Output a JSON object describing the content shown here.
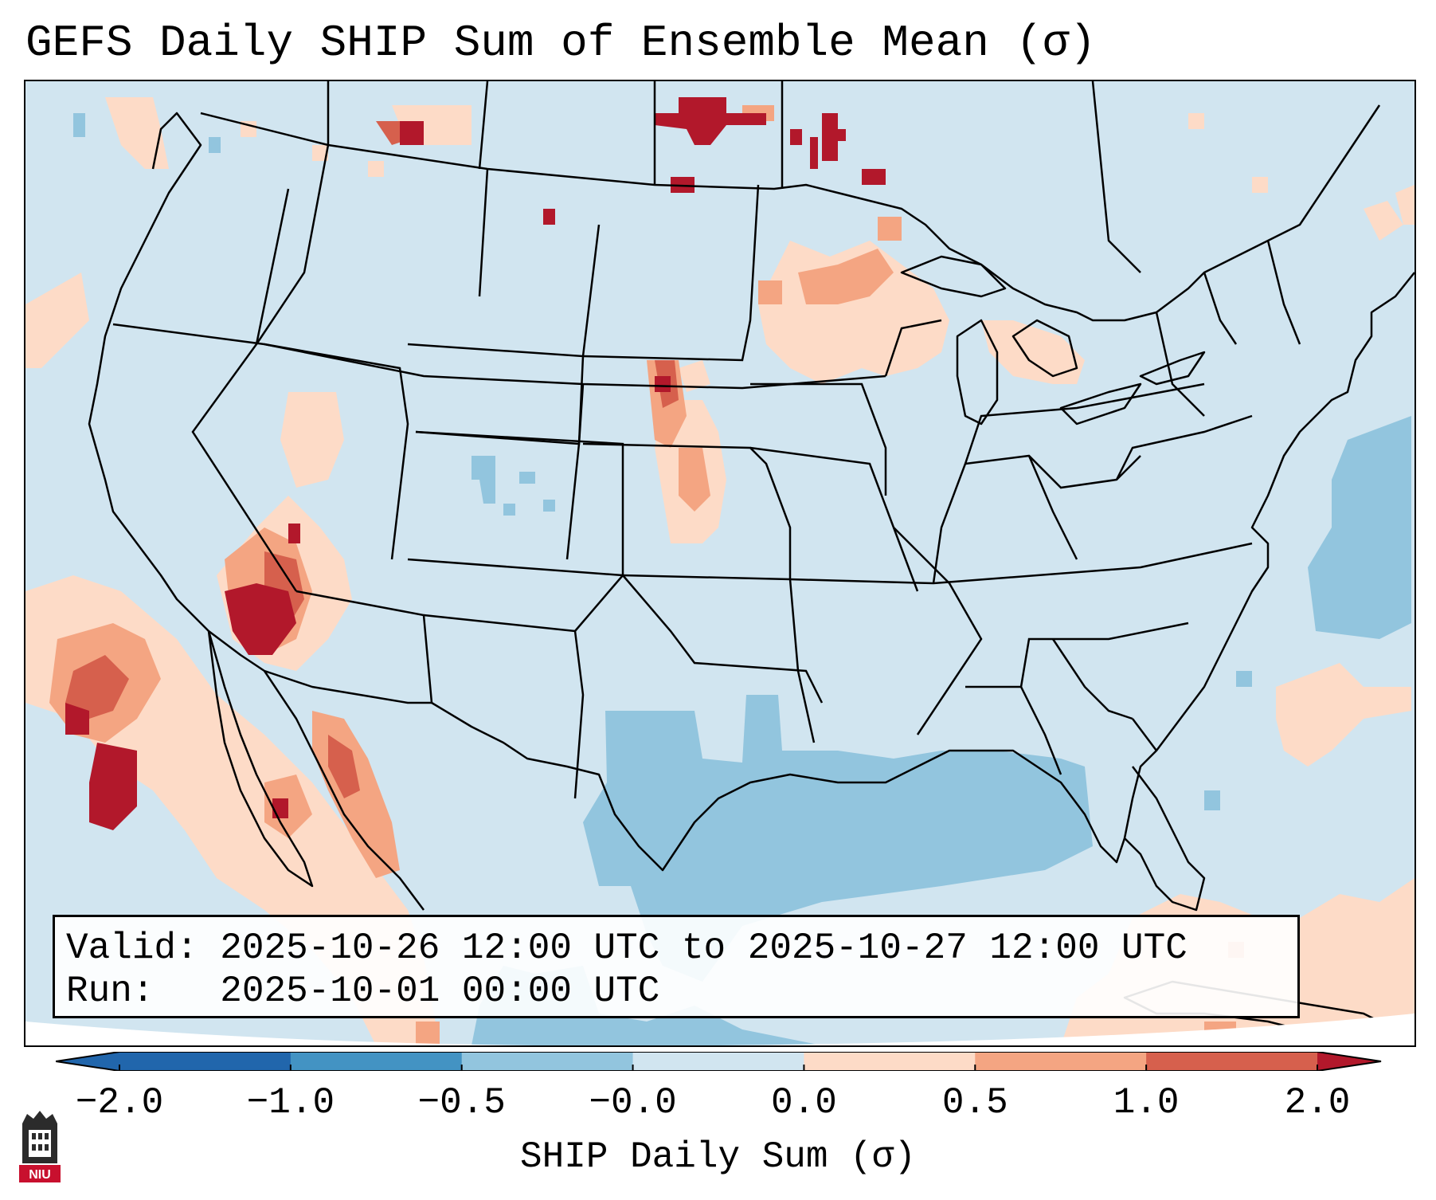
{
  "title": "GEFS Daily SHIP Sum of Ensemble Mean (σ)",
  "info": {
    "valid_label": "Valid:",
    "valid_value": "2025-10-26 12:00 UTC to 2025-10-27 12:00 UTC",
    "run_label": "Run:",
    "run_value": "2025-10-01 00:00 UTC"
  },
  "colorbar": {
    "label": "SHIP Daily Sum (σ)",
    "ticks": [
      "−2.0",
      "−1.0",
      "−0.5",
      "−0.0",
      "0.0",
      "0.5",
      "1.0",
      "2.0"
    ],
    "colors": [
      "#2166ac",
      "#4393c3",
      "#92c5de",
      "#d1e5f0",
      "#fddbc7",
      "#f4a582",
      "#d6604d",
      "#b2182b"
    ]
  },
  "map": {
    "region": "Contiguous United States",
    "background_color": "#d1e5f0",
    "anomaly_areas": [
      {
        "region": "Arizona / southern Nevada",
        "level": "2.0"
      },
      {
        "region": "Pacific Ocean off Baja California",
        "level": "2.0"
      },
      {
        "region": "Manitoba / northwest Ontario",
        "level": "2.0"
      },
      {
        "region": "Western Nebraska / Kansas",
        "level": "1.0"
      },
      {
        "region": "Upper Midwest / Lake Superior",
        "level": "0.5"
      },
      {
        "region": "Gulf of Mexico",
        "level": "-0.5"
      },
      {
        "region": "Western Atlantic",
        "level": "-0.5"
      }
    ]
  },
  "logo": {
    "text": "NIU",
    "color": "#c8102e"
  }
}
